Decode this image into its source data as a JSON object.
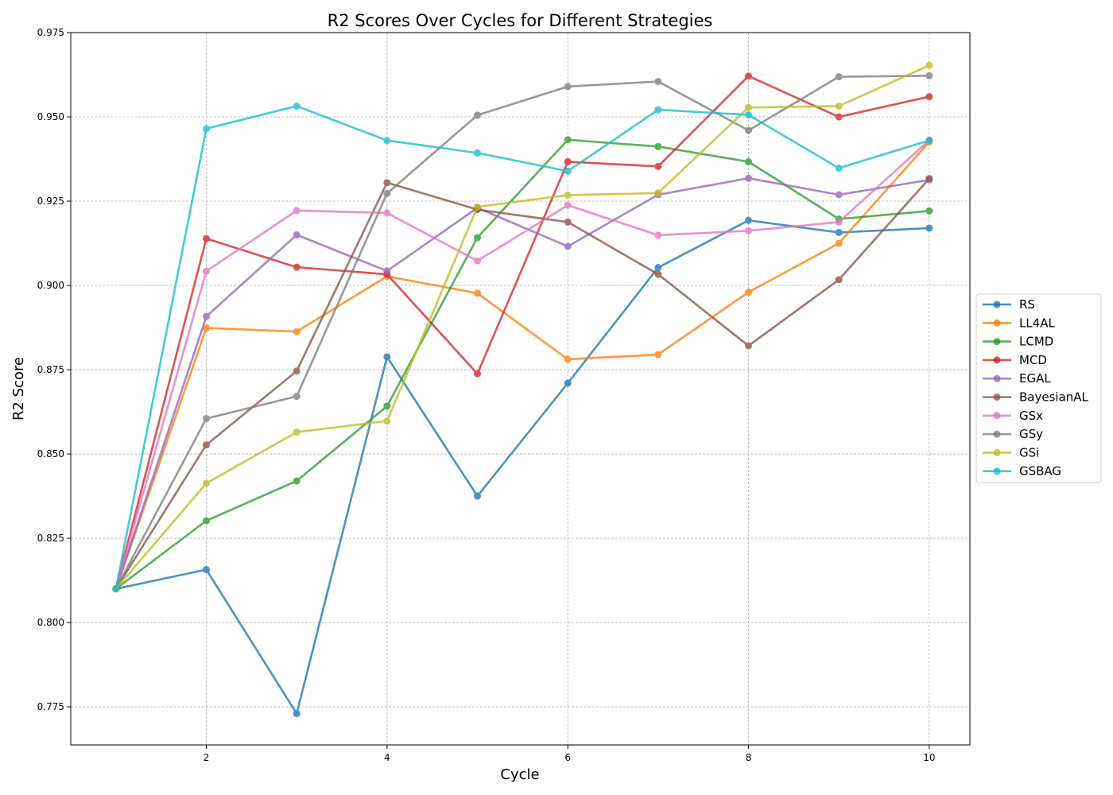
{
  "chart_data": {
    "type": "line",
    "title": "R2 Scores Over Cycles for Different Strategies",
    "xlabel": "Cycle",
    "ylabel": "R2 Score",
    "xlim": [
      0.5,
      10.45
    ],
    "ylim": [
      0.7637,
      0.975
    ],
    "xticks": [
      2,
      4,
      6,
      8,
      10
    ],
    "yticks": [
      0.775,
      0.8,
      0.825,
      0.85,
      0.875,
      0.9,
      0.925,
      0.95,
      0.975
    ],
    "ytick_labels": [
      "0.775",
      "0.800",
      "0.825",
      "0.850",
      "0.875",
      "0.900",
      "0.925",
      "0.950",
      "0.975"
    ],
    "grid": true,
    "legend_position": "center-right-outside",
    "x": [
      1,
      2,
      3,
      4,
      5,
      6,
      7,
      8,
      9,
      10
    ],
    "series": [
      {
        "name": "RS",
        "color": "#1f77b4",
        "values": [
          0.81,
          0.8157,
          0.773,
          0.8788,
          0.8375,
          0.871,
          0.9053,
          0.9193,
          0.9157,
          0.917
        ]
      },
      {
        "name": "LL4AL",
        "color": "#ff7f0e",
        "values": [
          0.81,
          0.8874,
          0.8863,
          0.9027,
          0.8977,
          0.8781,
          0.8795,
          0.898,
          0.9125,
          0.9426
        ]
      },
      {
        "name": "LCMD",
        "color": "#2ca02c",
        "values": [
          0.81,
          0.8302,
          0.842,
          0.8642,
          0.9142,
          0.9432,
          0.9412,
          0.9367,
          0.9197,
          0.9221
        ]
      },
      {
        "name": "MCD",
        "color": "#d62728",
        "values": [
          0.81,
          0.9139,
          0.9054,
          0.9033,
          0.8738,
          0.9367,
          0.9353,
          0.9621,
          0.95,
          0.956
        ]
      },
      {
        "name": "EGAL",
        "color": "#9467bd",
        "values": [
          0.81,
          0.8908,
          0.915,
          0.9043,
          0.923,
          0.9116,
          0.9269,
          0.9318,
          0.9269,
          0.9313
        ]
      },
      {
        "name": "BayesianAL",
        "color": "#8c564b",
        "values": [
          0.81,
          0.8527,
          0.8746,
          0.9305,
          0.9225,
          0.9188,
          0.9033,
          0.8821,
          0.9017,
          0.9317
        ]
      },
      {
        "name": "GSx",
        "color": "#e377c2",
        "values": [
          0.81,
          0.9042,
          0.9222,
          0.9215,
          0.9073,
          0.9238,
          0.9149,
          0.9162,
          0.9188,
          0.9431
        ]
      },
      {
        "name": "GSy",
        "color": "#7f7f7f",
        "values": [
          0.81,
          0.8605,
          0.8671,
          0.9273,
          0.9505,
          0.959,
          0.9605,
          0.946,
          0.9619,
          0.9622
        ]
      },
      {
        "name": "GSi",
        "color": "#bcbd22",
        "values": [
          0.81,
          0.8413,
          0.8565,
          0.8598,
          0.9233,
          0.9268,
          0.9274,
          0.9528,
          0.9532,
          0.9653
        ]
      },
      {
        "name": "GSBAG",
        "color": "#17becf",
        "values": [
          0.81,
          0.9465,
          0.9532,
          0.943,
          0.9393,
          0.9339,
          0.9521,
          0.9506,
          0.9348,
          0.943
        ]
      }
    ]
  }
}
